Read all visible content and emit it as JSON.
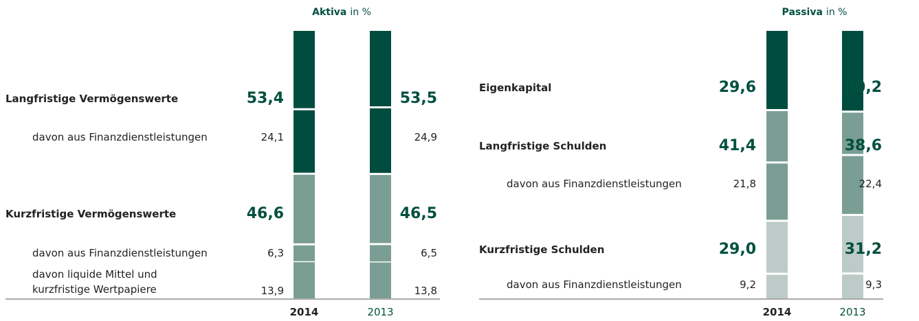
{
  "chart_data": [
    {
      "type": "bar",
      "title": "Aktiva",
      "title_suffix": "in %",
      "categories": [
        "Langfristige Vermögenswerte",
        "Kurzfristige Vermögenswerte"
      ],
      "sub_categories": [
        [
          "davon aus Finanzdienstleistungen"
        ],
        [
          "davon aus Finanzdienstleistungen",
          "davon liquide Mittel und\nkurzfristige Wertpapiere"
        ]
      ],
      "colors": [
        "#004d40",
        "#7a9e94"
      ],
      "ylim": [
        0,
        100
      ],
      "series": [
        {
          "name": "2014",
          "values": [
            53.4,
            46.6
          ],
          "value_labels": [
            "53,4",
            "46,6"
          ],
          "sub_values": [
            [
              24.1
            ],
            [
              6.3,
              13.9
            ]
          ],
          "sub_value_labels": [
            [
              "24,1"
            ],
            [
              "6,3",
              "13,9"
            ]
          ]
        },
        {
          "name": "2013",
          "values": [
            53.5,
            46.5
          ],
          "value_labels": [
            "53,5",
            "46,5"
          ],
          "sub_values": [
            [
              24.9
            ],
            [
              6.5,
              13.8
            ]
          ],
          "sub_value_labels": [
            [
              "24,9"
            ],
            [
              "6,5",
              "13,8"
            ]
          ]
        }
      ]
    },
    {
      "type": "bar",
      "title": "Passiva",
      "title_suffix": "in %",
      "categories": [
        "Eigenkapital",
        "Langfristige Schulden",
        "Kurzfristige Schulden"
      ],
      "sub_categories": [
        [],
        [
          "davon aus Finanzdienstleistungen"
        ],
        [
          "davon aus Finanzdienstleistungen"
        ]
      ],
      "colors": [
        "#004d40",
        "#7a9e94",
        "#bccbc7"
      ],
      "ylim": [
        0,
        100
      ],
      "series": [
        {
          "name": "2014",
          "values": [
            29.6,
            41.4,
            29.0
          ],
          "value_labels": [
            "29,6",
            "41,4",
            "29,0"
          ],
          "sub_values": [
            [],
            [
              21.8
            ],
            [
              9.2
            ]
          ],
          "sub_value_labels": [
            [],
            [
              "21,8"
            ],
            [
              "9,2"
            ]
          ]
        },
        {
          "name": "2013",
          "values": [
            30.2,
            38.6,
            31.2
          ],
          "value_labels": [
            "30,2",
            "38,6",
            "31,2"
          ],
          "sub_values": [
            [],
            [
              22.4
            ],
            [
              9.3
            ]
          ],
          "sub_value_labels": [
            [],
            [
              "22,4"
            ],
            [
              "9,3"
            ]
          ]
        }
      ]
    }
  ]
}
